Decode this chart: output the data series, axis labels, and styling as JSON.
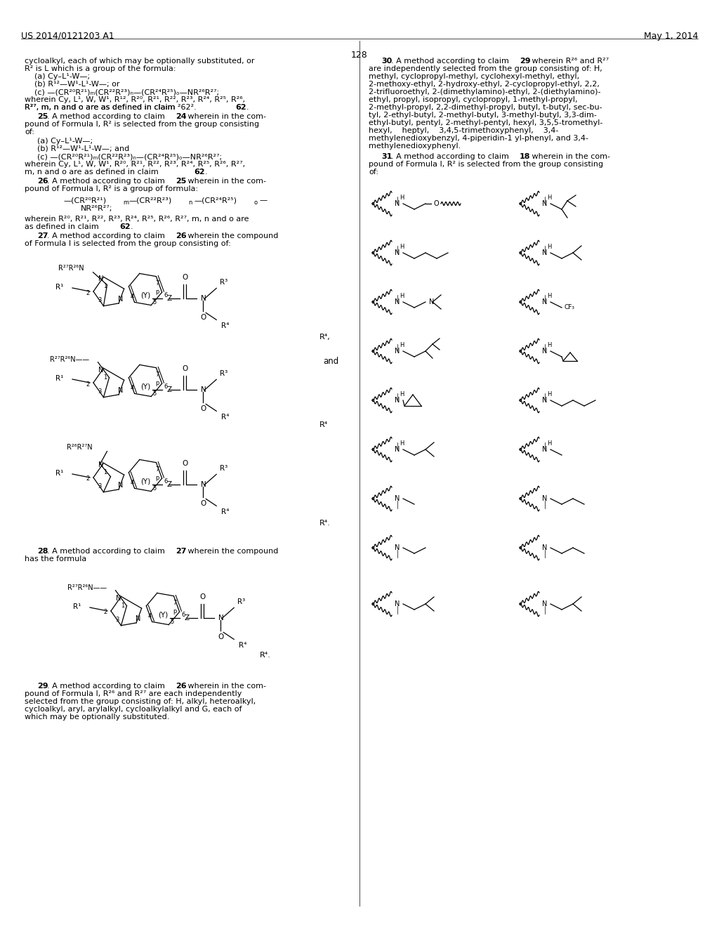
{
  "page_number": "128",
  "header_left": "US 2014/0121203 A1",
  "header_right": "May 1, 2014",
  "bg": "#ffffff"
}
